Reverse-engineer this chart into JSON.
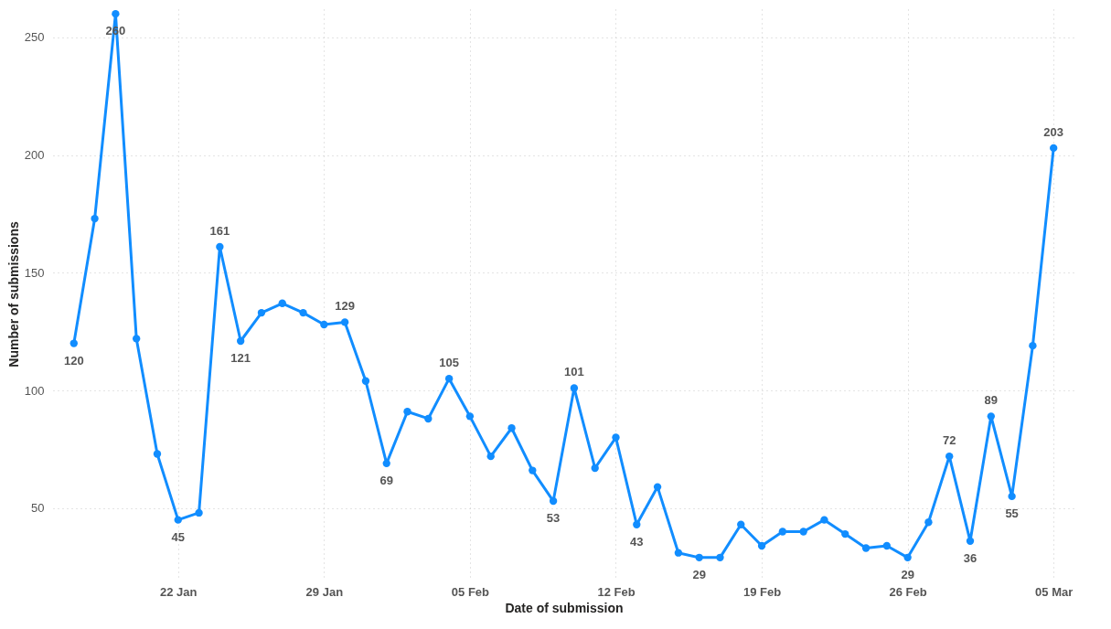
{
  "chart_data": {
    "type": "line",
    "xlabel": "Date of submission",
    "ylabel": "Number of submissions",
    "x": [
      "--01-17",
      "--01-18",
      "--01-19",
      "--01-20",
      "--01-21",
      "--01-22",
      "--01-23",
      "--01-24",
      "--01-25",
      "--01-26",
      "--01-27",
      "--01-28",
      "--01-29",
      "--01-30",
      "--01-31",
      "--02-01",
      "--02-02",
      "--02-03",
      "--02-04",
      "--02-05",
      "--02-06",
      "--02-07",
      "--02-08",
      "--02-09",
      "--02-10",
      "--02-11",
      "--02-12",
      "--02-13",
      "--02-14",
      "--02-15",
      "--02-16",
      "--02-17",
      "--02-18",
      "--02-19",
      "--02-20",
      "--02-21",
      "--02-22",
      "--02-23",
      "--02-24",
      "--02-25",
      "--02-26",
      "--02-27",
      "--02-28",
      "--03-01",
      "--03-02",
      "--03-03",
      "--03-04",
      "--03-05"
    ],
    "series": [
      {
        "color": "#118dff",
        "values": [
          120,
          173,
          260,
          122,
          73,
          45,
          48,
          161,
          121,
          133,
          137,
          133,
          128,
          129,
          104,
          69,
          91,
          88,
          105,
          89,
          72,
          84,
          66,
          53,
          101,
          67,
          80,
          43,
          59,
          31,
          29,
          29,
          43,
          34,
          40,
          40,
          45,
          39,
          33,
          34,
          29,
          44,
          72,
          36,
          89,
          55,
          119,
          203
        ],
        "value_labels": [
          "120",
          null,
          "260",
          null,
          null,
          "45",
          null,
          "161",
          "121",
          null,
          null,
          null,
          null,
          "129",
          null,
          "69",
          null,
          null,
          "105",
          null,
          null,
          null,
          null,
          "53",
          "101",
          null,
          null,
          "43",
          null,
          null,
          "29",
          null,
          null,
          null,
          null,
          null,
          null,
          null,
          null,
          null,
          "29",
          null,
          "72",
          "36",
          "89",
          "55",
          null,
          "203"
        ]
      }
    ],
    "xlim": [
      "--01-16",
      "--03-06"
    ],
    "xticks": [
      {
        "value": "--01-22",
        "label": "22 Jan"
      },
      {
        "value": "--01-29",
        "label": "29 Jan"
      },
      {
        "value": "--02-05",
        "label": "05 Feb"
      },
      {
        "value": "--02-12",
        "label": "12 Feb"
      },
      {
        "value": "--02-19",
        "label": "19 Feb"
      },
      {
        "value": "--02-26",
        "label": "26 Feb"
      },
      {
        "value": "--03-05",
        "label": "05 Mar"
      }
    ],
    "ylim": [
      20,
      262
    ],
    "yticks": [
      50,
      100,
      150,
      200,
      250
    ],
    "grid": true,
    "marker": "circle",
    "line_style": "solid"
  }
}
